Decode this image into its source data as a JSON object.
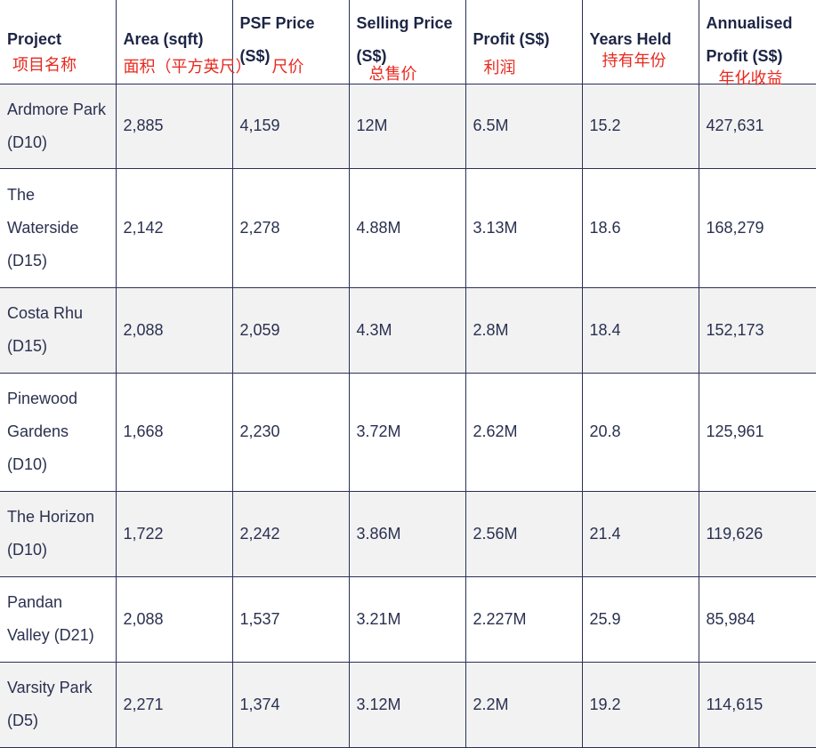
{
  "headers": [
    {
      "en": "Project",
      "cn": "项目名称"
    },
    {
      "en": "Area (sqft)",
      "cn": "面积（平方英尺）"
    },
    {
      "en": "PSF Price (S$)",
      "cn": "尺价"
    },
    {
      "en": "Selling Price (S$)",
      "cn": "总售价"
    },
    {
      "en": "Profit (S$)",
      "cn": "利润"
    },
    {
      "en": "Years Held",
      "cn": "持有年份"
    },
    {
      "en": "Annualised Profit (S$)",
      "cn": "年化收益"
    }
  ],
  "rows": [
    [
      "Ardmore Park (D10)",
      "2,885",
      "4,159",
      "12M",
      "6.5M",
      "15.2",
      "427,631"
    ],
    [
      "The Waterside (D15)",
      "2,142",
      "2,278",
      "4.88M",
      "3.13M",
      "18.6",
      "168,279"
    ],
    [
      "Costa Rhu (D15)",
      "2,088",
      "2,059",
      "4.3M",
      "2.8M",
      "18.4",
      "152,173"
    ],
    [
      "Pinewood Gardens (D10)",
      "1,668",
      "2,230",
      "3.72M",
      "2.62M",
      "20.8",
      "125,961"
    ],
    [
      "The Horizon (D10)",
      "1,722",
      "2,242",
      "3.86M",
      "2.56M",
      "21.4",
      "119,626"
    ],
    [
      "Pandan Valley (D21)",
      "2,088",
      "1,537",
      "3.21M",
      "2.227M",
      "25.9",
      "85,984"
    ],
    [
      "Varsity Park (D5)",
      "2,271",
      "1,374",
      "3.12M",
      "2.2M",
      "19.2",
      "114,615"
    ]
  ]
}
